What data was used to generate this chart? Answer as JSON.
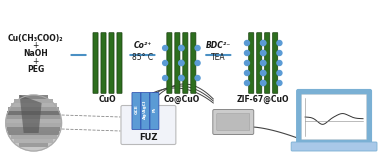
{
  "rod_color": "#2d6e1e",
  "rod_border_color": "#1a4010",
  "arrow_line_color": "#4a90c4",
  "dot_color": "#5b9bd5",
  "text_color": "#1a1a1a",
  "reactant_text_lines": [
    "Cu(CH₃COO)₂",
    "+",
    "NaOH",
    "+",
    "PEG"
  ],
  "arrow1_label_top": "Co²⁺",
  "arrow1_label_bot": "85° C",
  "arrow2_label_top": "BDC²⁻",
  "arrow2_label_bot": "TEA",
  "label_cuo": "CuO",
  "label_cocuo": "Co@CuO",
  "label_zif": "ZIF-67@CuO",
  "electrode_labels": [
    "GCE",
    "Ag/AgCl",
    "Pt"
  ],
  "beaker_label": "FUZ",
  "elec_color": "#5b9bd5",
  "elec_border": "#2244aa",
  "beaker_fill": "#eef0f8",
  "beaker_edge": "#aaaaaa",
  "potentiostat_fill": "#cccccc",
  "potentiostat_edge": "#888888",
  "laptop_frame": "#7ab0d4",
  "laptop_screen_bg": "#ddeeff",
  "laptop_base": "#a8c8e8",
  "wire_color": "#444444",
  "tem_bg": "#aaaaaa",
  "connect_line_color": "#888888"
}
